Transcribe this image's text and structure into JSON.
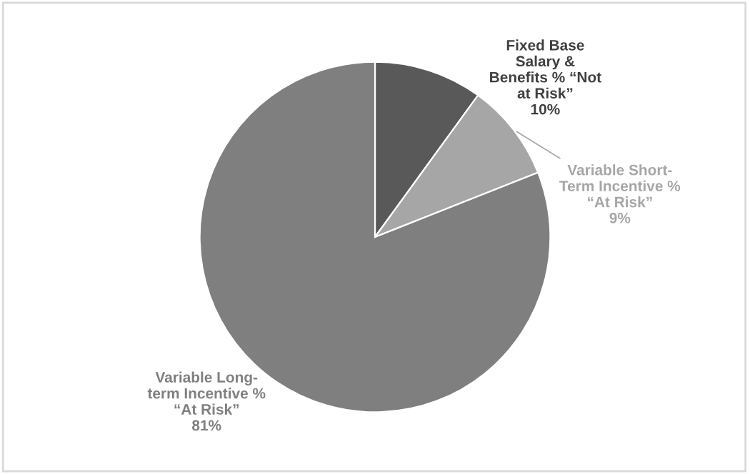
{
  "chart_data": {
    "type": "pie",
    "categories": [
      "Fixed Base Salary & Benefits % “Not at Risk”",
      "Variable Short-Term Incentive % “At Risk”",
      "Variable Long-term Incentive % “At Risk”"
    ],
    "values": [
      10,
      9,
      81
    ],
    "colors": [
      "#595959",
      "#a6a6a6",
      "#7f7f7f"
    ],
    "value_labels": [
      "10%",
      "9%",
      "81%"
    ]
  }
}
